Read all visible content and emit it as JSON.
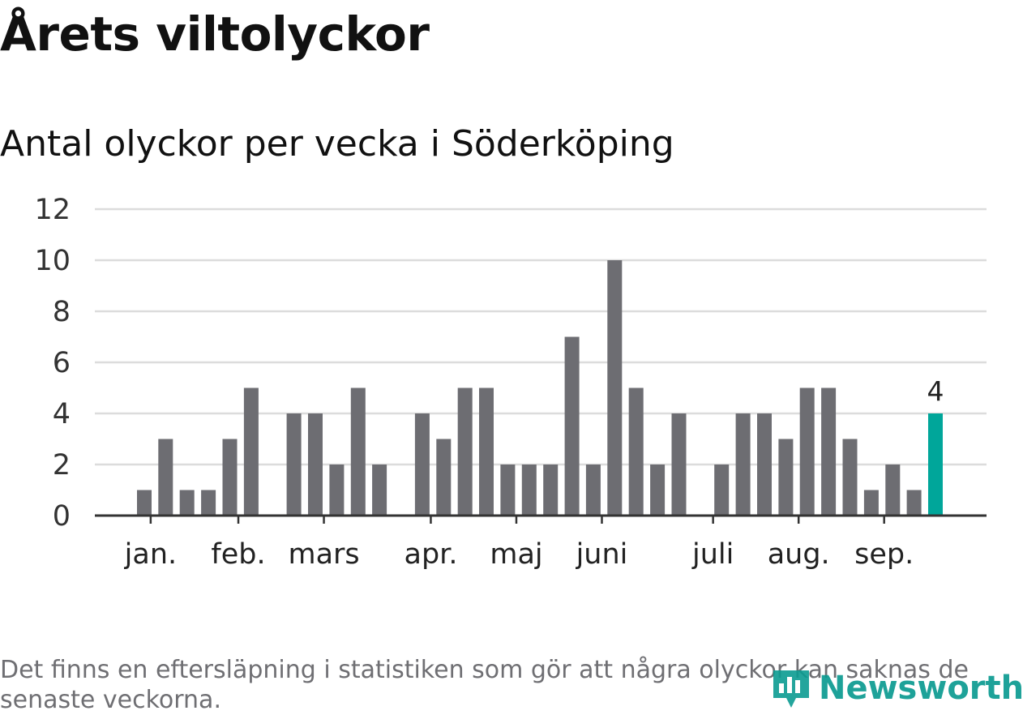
{
  "title": "Årets viltolyckor",
  "subtitle": "Antal olyckor per vecka i Söderköping",
  "footnote": "Det finns en eftersläpning i statistiken som gör att några olyckor kan saknas de senaste veckorna.",
  "brand": "Newsworthy",
  "colors": {
    "bar": "#6d6d72",
    "highlight": "#00a69a",
    "grid": "#dcdcdc",
    "axis": "#333333",
    "brand": "#0b9b91"
  },
  "chart_data": {
    "type": "bar",
    "title": "Antal olyckor per vecka i Söderköping",
    "xlabel": "",
    "ylabel": "",
    "ylim": [
      0,
      12
    ],
    "yticks": [
      "0",
      "2",
      "4",
      "6",
      "8",
      "10",
      "12"
    ],
    "grid": true,
    "weeks": [
      1,
      2,
      3,
      4,
      5,
      6,
      7,
      8,
      9,
      10,
      11,
      12,
      13,
      14,
      15,
      16,
      17,
      18,
      19,
      20,
      21,
      22,
      23,
      24,
      25,
      26,
      27,
      28,
      29,
      30,
      31,
      32,
      33,
      34,
      35,
      36,
      37,
      38,
      39,
      40
    ],
    "values": [
      0,
      0,
      1,
      3,
      1,
      1,
      3,
      5,
      0,
      4,
      4,
      2,
      5,
      2,
      0,
      4,
      3,
      5,
      5,
      2,
      2,
      2,
      7,
      2,
      10,
      5,
      2,
      4,
      0,
      2,
      4,
      4,
      3,
      5,
      5,
      3,
      1,
      2,
      1,
      4
    ],
    "highlight_index": 39,
    "highlight_label": "4",
    "month_ticks": [
      {
        "label": "jan.",
        "week": 3.3
      },
      {
        "label": "feb.",
        "week": 7.4
      },
      {
        "label": "mars",
        "week": 11.4
      },
      {
        "label": "apr.",
        "week": 16.4
      },
      {
        "label": "maj",
        "week": 20.4
      },
      {
        "label": "juni",
        "week": 24.4
      },
      {
        "label": "juli",
        "week": 29.6
      },
      {
        "label": "aug.",
        "week": 33.6
      },
      {
        "label": "sep.",
        "week": 37.6
      }
    ]
  }
}
